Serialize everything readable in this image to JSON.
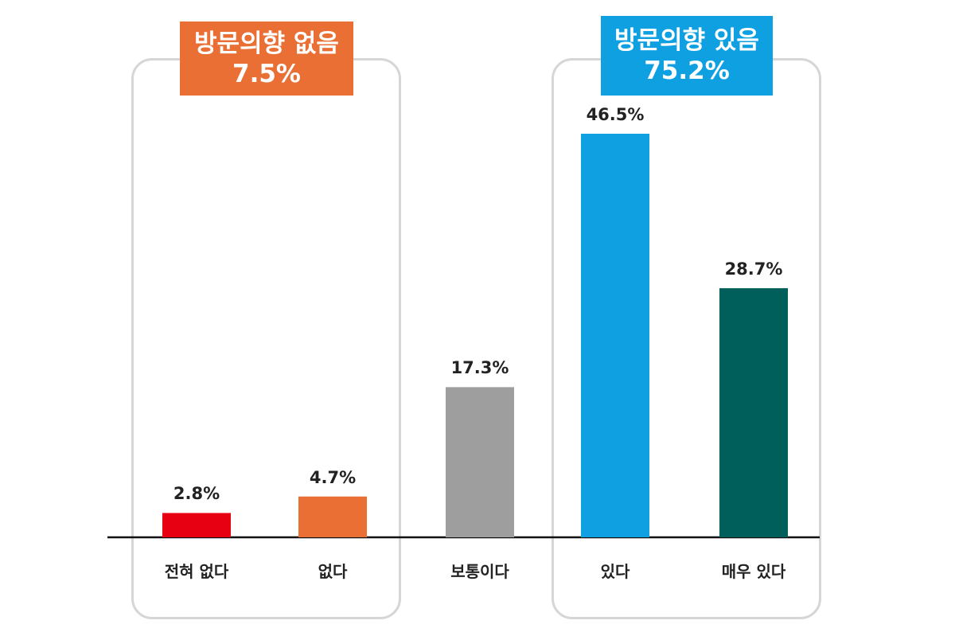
{
  "groups": {
    "negative": {
      "title": "방문의향 없음",
      "value": "7.5%",
      "color": "#e96f34"
    },
    "positive": {
      "title": "방문의향 있음",
      "value": "75.2%",
      "color": "#0fa0e1"
    }
  },
  "chart_data": {
    "type": "bar",
    "categories": [
      "전혀 없다",
      "없다",
      "보통이다",
      "있다",
      "매우 있다"
    ],
    "values": [
      2.8,
      4.7,
      17.3,
      46.5,
      28.7
    ],
    "value_labels": [
      "2.8%",
      "4.7%",
      "17.3%",
      "46.5%",
      "28.7%"
    ],
    "colors": [
      "#e60012",
      "#e96f34",
      "#9e9e9e",
      "#0fa0e1",
      "#005f5a"
    ],
    "ylim": [
      0,
      46.5
    ],
    "grid": false,
    "axis_color": "#111111"
  }
}
